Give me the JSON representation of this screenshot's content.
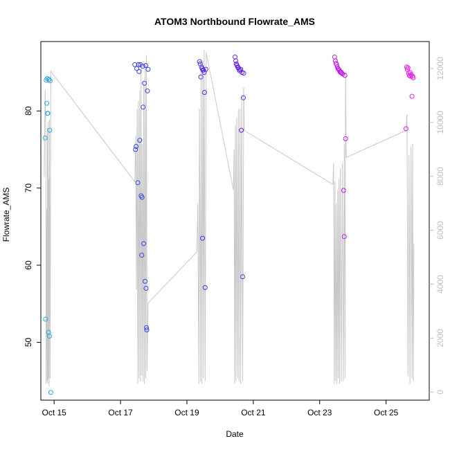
{
  "chart_data": {
    "type": "scatter",
    "title": "ATOM3 Northbound Flowrate_AMS",
    "xlabel": "Date",
    "ylabel": "Flowrate_AMS",
    "xlim": [
      14.6,
      26.3
    ],
    "ylim": [
      42.5,
      89.0
    ],
    "y2lim": [
      -300,
      13000
    ],
    "x_ticks": [
      15,
      17,
      19,
      21,
      23,
      25
    ],
    "x_tick_labels": [
      "Oct 15",
      "Oct 17",
      "Oct 19",
      "Oct 21",
      "Oct 23",
      "Oct 25"
    ],
    "y_ticks": [
      50,
      60,
      70,
      80
    ],
    "y_tick_labels": [
      "50",
      "60",
      "70",
      "80"
    ],
    "y2_ticks": [
      0,
      2000,
      4000,
      6000,
      8000,
      10000,
      12000
    ],
    "y2_tick_labels": [
      "0",
      "2000",
      "4000",
      "6000",
      "8000",
      "10000",
      "12000"
    ],
    "grid": false,
    "legend": "none",
    "colors": {
      "line": "#c8c8c8",
      "right_axis": "#bfbfbf",
      "axis": "#000000",
      "point_gradient": [
        "#29a8e0",
        "#3545e6",
        "#5a1de8",
        "#b51be6",
        "#e51ce5"
      ]
    },
    "series": [
      {
        "type": "scatter",
        "points": [
          [
            14.73,
            76.5
          ],
          [
            14.74,
            53.0
          ],
          [
            14.76,
            84.0
          ],
          [
            14.78,
            81.0
          ],
          [
            14.79,
            84.2
          ],
          [
            14.8,
            79.7
          ],
          [
            14.81,
            79.7
          ],
          [
            14.83,
            51.3
          ],
          [
            14.84,
            84.1
          ],
          [
            14.85,
            84.1
          ],
          [
            14.86,
            50.8
          ],
          [
            14.87,
            77.5
          ],
          [
            14.88,
            83.9
          ],
          [
            14.9,
            43.5
          ],
          [
            17.43,
            86.0
          ],
          [
            17.45,
            75.0
          ],
          [
            17.47,
            75.4
          ],
          [
            17.49,
            85.5
          ],
          [
            17.52,
            70.7
          ],
          [
            17.54,
            86.0
          ],
          [
            17.56,
            85.1
          ],
          [
            17.58,
            76.2
          ],
          [
            17.6,
            86.0
          ],
          [
            17.62,
            69.0
          ],
          [
            17.64,
            61.3
          ],
          [
            17.65,
            68.8
          ],
          [
            17.67,
            85.8
          ],
          [
            17.68,
            80.5
          ],
          [
            17.7,
            62.8
          ],
          [
            17.72,
            83.6
          ],
          [
            17.74,
            57.9
          ],
          [
            17.76,
            85.9
          ],
          [
            17.77,
            57.0
          ],
          [
            17.78,
            51.9
          ],
          [
            17.79,
            51.6
          ],
          [
            17.81,
            82.6
          ],
          [
            17.83,
            85.4
          ],
          [
            19.38,
            86.4
          ],
          [
            19.4,
            86.1
          ],
          [
            19.42,
            84.4
          ],
          [
            19.44,
            85.7
          ],
          [
            19.46,
            85.5
          ],
          [
            19.47,
            63.5
          ],
          [
            19.48,
            85.3
          ],
          [
            19.5,
            85.3
          ],
          [
            19.52,
            85.0
          ],
          [
            19.53,
            82.4
          ],
          [
            19.55,
            57.1
          ],
          [
            19.57,
            85.4
          ],
          [
            20.45,
            87.0
          ],
          [
            20.47,
            86.5
          ],
          [
            20.49,
            86.1
          ],
          [
            20.51,
            85.9
          ],
          [
            20.53,
            85.7
          ],
          [
            20.55,
            85.6
          ],
          [
            20.57,
            85.4
          ],
          [
            20.59,
            85.2
          ],
          [
            20.62,
            85.4
          ],
          [
            20.64,
            77.5
          ],
          [
            20.66,
            85.0
          ],
          [
            20.68,
            58.5
          ],
          [
            20.7,
            81.7
          ],
          [
            20.71,
            84.9
          ],
          [
            23.45,
            87.0
          ],
          [
            23.47,
            86.5
          ],
          [
            23.49,
            86.2
          ],
          [
            23.51,
            86.0
          ],
          [
            23.53,
            85.7
          ],
          [
            23.55,
            85.5
          ],
          [
            23.57,
            85.4
          ],
          [
            23.59,
            85.3
          ],
          [
            23.61,
            85.1
          ],
          [
            23.63,
            85.0
          ],
          [
            23.65,
            85.0
          ],
          [
            23.67,
            84.9
          ],
          [
            23.69,
            84.8
          ],
          [
            23.72,
            69.7
          ],
          [
            23.74,
            63.7
          ],
          [
            23.76,
            84.6
          ],
          [
            23.78,
            76.4
          ],
          [
            25.6,
            77.7
          ],
          [
            25.62,
            85.7
          ],
          [
            25.64,
            85.4
          ],
          [
            25.66,
            85.6
          ],
          [
            25.68,
            84.9
          ],
          [
            25.7,
            84.6
          ],
          [
            25.72,
            85.0
          ],
          [
            25.74,
            84.5
          ],
          [
            25.76,
            84.7
          ],
          [
            25.78,
            81.9
          ],
          [
            25.8,
            84.5
          ],
          [
            25.82,
            84.3
          ]
        ]
      },
      {
        "type": "line",
        "axis": "right",
        "points": [
          [
            14.7,
            8000
          ],
          [
            14.73,
            11200
          ],
          [
            14.75,
            9500
          ],
          [
            14.76,
            300
          ],
          [
            14.78,
            6800
          ],
          [
            14.79,
            400
          ],
          [
            14.8,
            9800
          ],
          [
            14.81,
            300
          ],
          [
            14.82,
            10000
          ],
          [
            14.83,
            500
          ],
          [
            14.84,
            7900
          ],
          [
            14.85,
            200
          ],
          [
            14.86,
            10100
          ],
          [
            14.88,
            500
          ],
          [
            14.9,
            11900
          ],
          [
            17.43,
            7800
          ],
          [
            17.46,
            9500
          ],
          [
            17.48,
            3800
          ],
          [
            17.5,
            10500
          ],
          [
            17.52,
            300
          ],
          [
            17.54,
            10800
          ],
          [
            17.56,
            500
          ],
          [
            17.58,
            11200
          ],
          [
            17.6,
            400
          ],
          [
            17.62,
            12000
          ],
          [
            17.64,
            600
          ],
          [
            17.66,
            9200
          ],
          [
            17.68,
            400
          ],
          [
            17.7,
            11500
          ],
          [
            17.72,
            300
          ],
          [
            17.74,
            12200
          ],
          [
            17.76,
            500
          ],
          [
            17.78,
            12500
          ],
          [
            17.8,
            800
          ],
          [
            17.83,
            3300
          ],
          [
            19.3,
            5200
          ],
          [
            19.33,
            7000
          ],
          [
            19.36,
            300
          ],
          [
            19.38,
            10500
          ],
          [
            19.41,
            400
          ],
          [
            19.43,
            12000
          ],
          [
            19.45,
            300
          ],
          [
            19.48,
            12300
          ],
          [
            19.5,
            500
          ],
          [
            19.52,
            12700
          ],
          [
            19.55,
            400
          ],
          [
            19.58,
            12600
          ],
          [
            20.4,
            7500
          ],
          [
            20.42,
            9000
          ],
          [
            20.44,
            300
          ],
          [
            20.46,
            9900
          ],
          [
            20.48,
            400
          ],
          [
            20.5,
            10200
          ],
          [
            20.53,
            500
          ],
          [
            20.55,
            10500
          ],
          [
            20.57,
            400
          ],
          [
            20.6,
            10500
          ],
          [
            20.62,
            300
          ],
          [
            20.65,
            11000
          ],
          [
            20.68,
            400
          ],
          [
            20.71,
            11300
          ],
          [
            20.73,
            9700
          ],
          [
            23.4,
            7700
          ],
          [
            23.42,
            8500
          ],
          [
            23.44,
            300
          ],
          [
            23.46,
            7800
          ],
          [
            23.48,
            400
          ],
          [
            23.5,
            7000
          ],
          [
            23.52,
            300
          ],
          [
            23.54,
            7500
          ],
          [
            23.56,
            500
          ],
          [
            23.58,
            7900
          ],
          [
            23.6,
            300
          ],
          [
            23.62,
            8300
          ],
          [
            23.65,
            400
          ],
          [
            23.68,
            8500
          ],
          [
            23.71,
            400
          ],
          [
            23.74,
            9200
          ],
          [
            23.76,
            500
          ],
          [
            23.78,
            11900
          ],
          [
            23.8,
            8700
          ],
          [
            25.6,
            9700
          ],
          [
            25.63,
            10300
          ],
          [
            25.66,
            600
          ],
          [
            25.69,
            8800
          ],
          [
            25.72,
            300
          ],
          [
            25.75,
            9100
          ],
          [
            25.78,
            500
          ],
          [
            25.8,
            9200
          ],
          [
            25.82,
            400
          ],
          [
            25.84,
            5500
          ]
        ]
      }
    ]
  }
}
